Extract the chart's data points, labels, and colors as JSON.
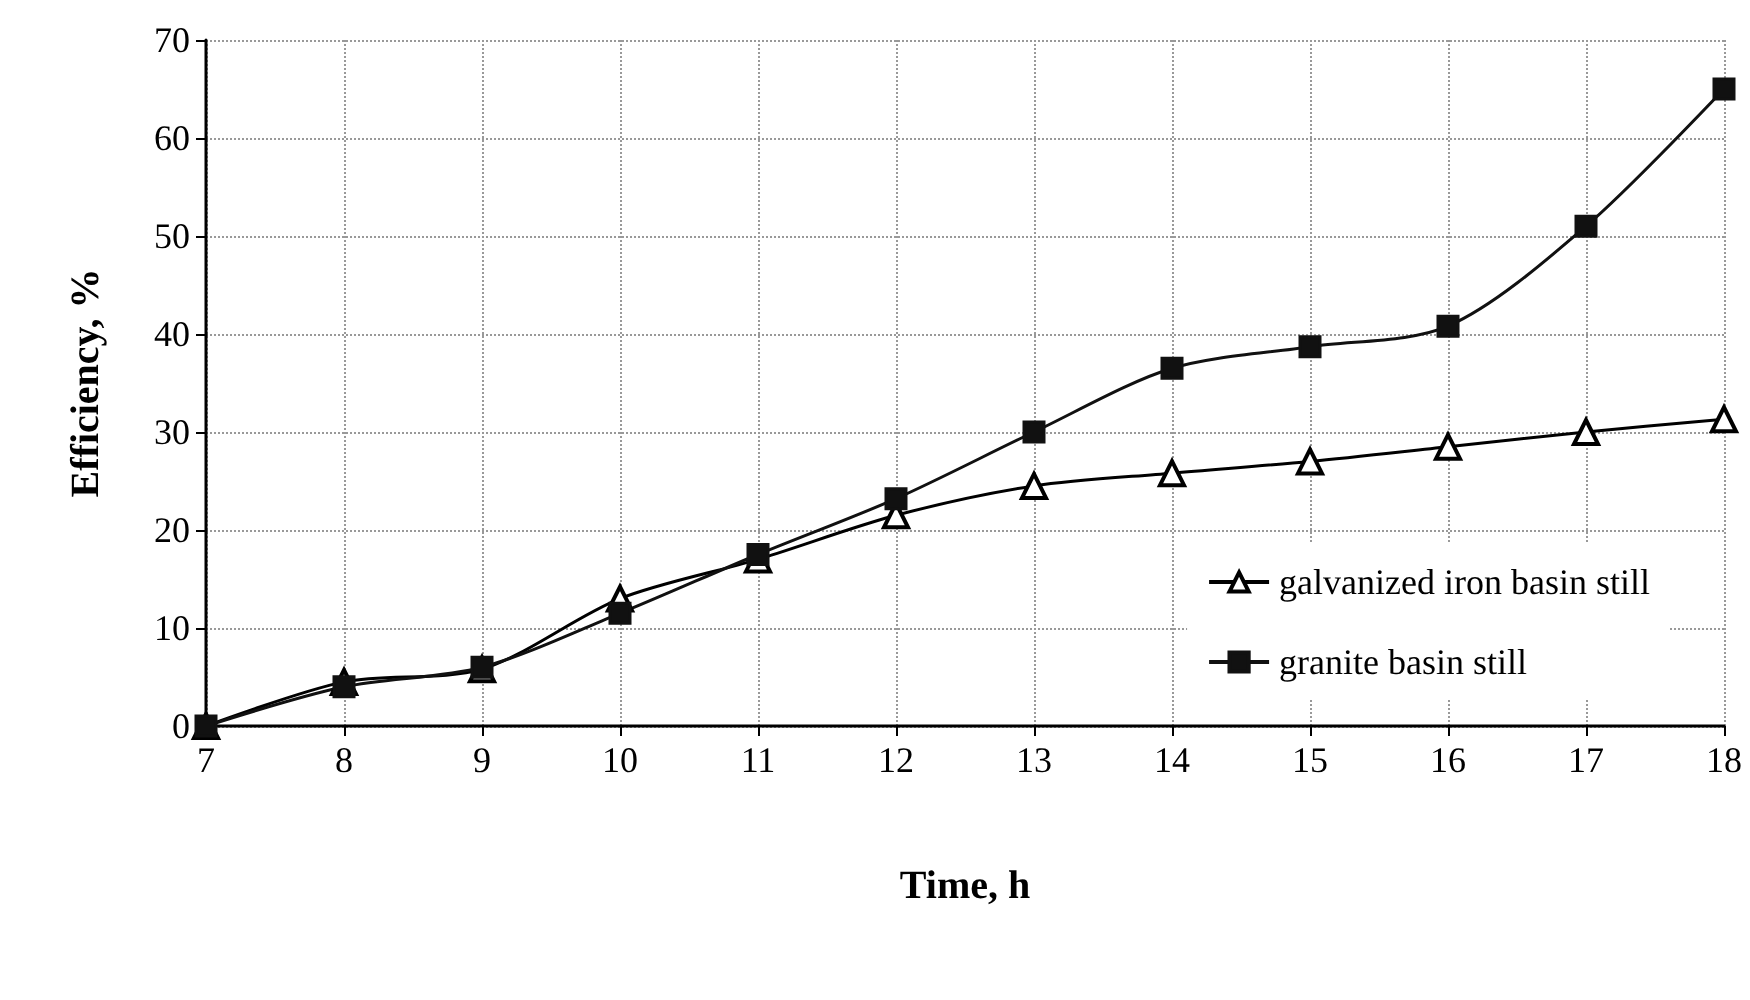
{
  "chart_data": {
    "type": "line",
    "xlabel": "Time, h",
    "ylabel": "Efficiency, %",
    "x": [
      7,
      8,
      9,
      10,
      11,
      12,
      13,
      14,
      15,
      16,
      17,
      18
    ],
    "series": [
      {
        "name": "galvanized iron basin still",
        "color": "#000000",
        "marker": "triangle",
        "values": [
          0,
          4.5,
          5.8,
          13,
          17,
          21.5,
          24.5,
          25.8,
          27,
          28.5,
          30,
          31.3
        ]
      },
      {
        "name": "granite basin still",
        "color": "#111111",
        "marker": "square",
        "values": [
          0,
          4,
          6,
          11.5,
          17.5,
          23.2,
          30,
          36.5,
          38.7,
          40.8,
          51,
          65
        ]
      }
    ],
    "xlim": [
      7,
      18
    ],
    "xticks": [
      7,
      8,
      9,
      10,
      11,
      12,
      13,
      14,
      15,
      16,
      17,
      18
    ],
    "ylim": [
      0,
      70
    ],
    "yticks": [
      0,
      10,
      20,
      30,
      40,
      50,
      60,
      70
    ],
    "grid": true,
    "legend": "bottom right",
    "line_style": "solid"
  }
}
